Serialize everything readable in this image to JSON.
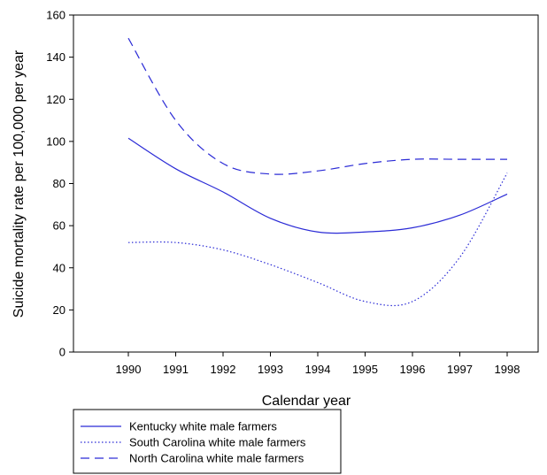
{
  "chart_data": {
    "type": "line",
    "title": "",
    "xlabel": "Calendar year",
    "ylabel": "Suicide mortality rate per 100,000 per year",
    "x": [
      "1990",
      "1991",
      "1992",
      "1993",
      "1994",
      "1995",
      "1996",
      "1997",
      "1998"
    ],
    "ylim": [
      0,
      160
    ],
    "yticks": [
      0,
      20,
      40,
      60,
      80,
      100,
      120,
      140,
      160
    ],
    "grid": false,
    "legend_position": "bottom-left",
    "line_color": "#2b2bd6",
    "series": [
      {
        "name": "Kentucky white male farmers",
        "style": "solid",
        "values": [
          101.5,
          87,
          76,
          63.5,
          57,
          57,
          59,
          65,
          75
        ]
      },
      {
        "name": "South Carolina white male farmers",
        "style": "dotted",
        "values": [
          52,
          52,
          48.5,
          41.5,
          33,
          24,
          24,
          45,
          85
        ]
      },
      {
        "name": "North Carolina white male farmers",
        "style": "dashed",
        "values": [
          149,
          110,
          89.5,
          84.5,
          86,
          89.5,
          91.5,
          91.5,
          91.5
        ]
      }
    ]
  }
}
